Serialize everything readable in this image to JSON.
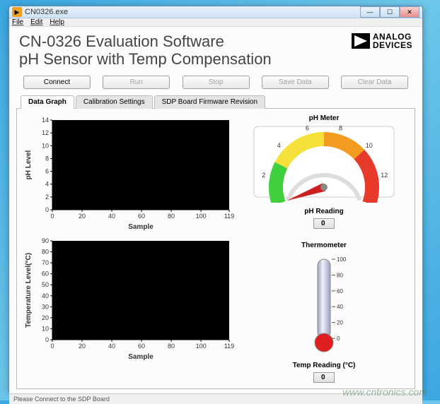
{
  "window": {
    "title": "CN0326.exe",
    "icon_glyph": "▶"
  },
  "menubar": [
    "File",
    "Edit",
    "Help"
  ],
  "header": {
    "line1": "CN-0326 Evaluation Software",
    "line2": "pH Sensor with Temp Compensation",
    "logo_text1": "ANALOG",
    "logo_text2": "DEVICES"
  },
  "buttons": {
    "connect": "Connect",
    "run": "Run",
    "stop": "Stop",
    "save": "Save Data",
    "clear": "Clear Data"
  },
  "tabs": {
    "graph": "Data Graph",
    "calib": "Calibration Settings",
    "fw": "SDP Board Firmware Revision"
  },
  "ph_chart": {
    "ylabel": "pH Level",
    "xlabel": "Sample",
    "xlim": [
      0,
      119
    ],
    "ylim": [
      0,
      14
    ],
    "xticks": [
      0,
      20,
      40,
      60,
      80,
      100,
      119
    ],
    "yticks": [
      0,
      2,
      4,
      6,
      8,
      10,
      12,
      14
    ],
    "bg_color": "#000000",
    "axis_color": "#000000",
    "text_color": "#333333",
    "font_size": 9
  },
  "temp_chart": {
    "ylabel": "Temperature Level(°C)",
    "xlabel": "Sample",
    "xlim": [
      0,
      119
    ],
    "ylim": [
      0,
      90
    ],
    "xticks": [
      0,
      20,
      40,
      60,
      80,
      100,
      119
    ],
    "yticks": [
      0,
      10,
      20,
      30,
      40,
      50,
      60,
      70,
      80,
      90
    ],
    "bg_color": "#000000",
    "axis_color": "#000000",
    "text_color": "#333333",
    "font_size": 9
  },
  "ph_meter": {
    "title": "pH Meter",
    "min": 0,
    "max": 14,
    "ticks": [
      0,
      2,
      4,
      6,
      8,
      10,
      12,
      14
    ],
    "needle_value": 0,
    "colors": {
      "arc_green": "#3fcf3f",
      "arc_yellow": "#f5e13a",
      "arc_orange": "#f29b1f",
      "arc_red": "#e83a2a",
      "needle": "#cc2020",
      "tick_text": "#333333",
      "face": "#ffffff"
    },
    "reading_label": "pH Reading",
    "reading_value": "0"
  },
  "thermometer": {
    "title": "Thermometer",
    "min": 0,
    "max": 100,
    "ticks": [
      0,
      20,
      40,
      60,
      80,
      100
    ],
    "value": 0,
    "colors": {
      "tube_light": "#f0f0f8",
      "tube_dark": "#9aa0c0",
      "fluid": "#e02020",
      "tick_text": "#333333"
    },
    "reading_label": "Temp Reading (°C)",
    "reading_value": "0"
  },
  "statusbar": "Please Connect to the SDP Board",
  "watermark": "www.cntronics.com"
}
